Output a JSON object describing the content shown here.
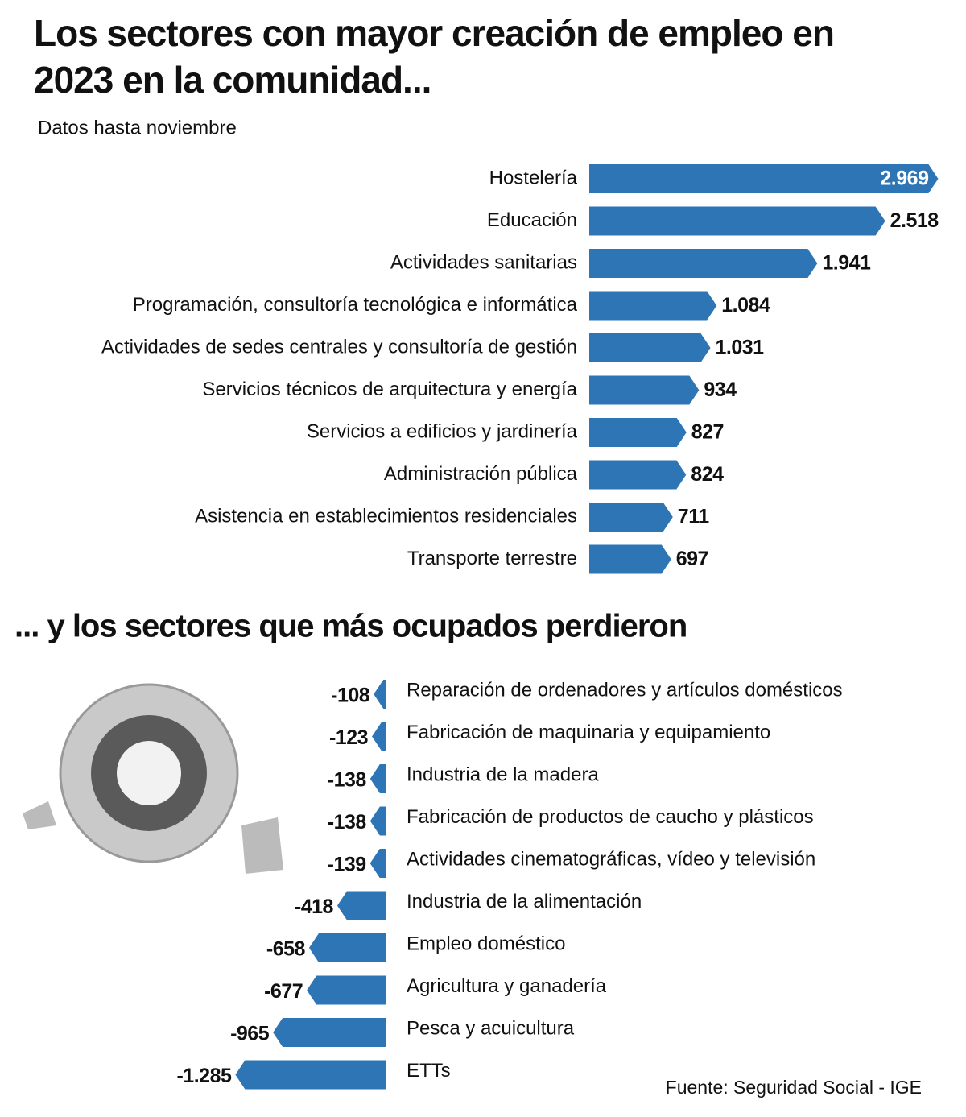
{
  "chart_data": [
    {
      "type": "bar",
      "orientation": "horizontal",
      "title": "Los sectores con mayor creación de empleo en 2023 en la comunidad...",
      "subtitle": "Datos hasta noviembre",
      "color": "#2e75b6",
      "categories": [
        "Hostelería",
        "Educación",
        "Actividades sanitarias",
        "Programación, consultoría tecnológica e informática",
        "Actividades de sedes centrales y consultoría de gestión",
        "Servicios técnicos de arquitectura y energía",
        "Servicios a edificios y jardinería",
        "Administración pública",
        "Asistencia en establecimientos residenciales",
        "Transporte terrestre"
      ],
      "values": [
        2969,
        2518,
        1941,
        1084,
        1031,
        934,
        827,
        824,
        711,
        697
      ],
      "value_labels": [
        "2.969",
        "2.518",
        "1.941",
        "1.084",
        "1.031",
        "934",
        "827",
        "824",
        "711",
        "697"
      ]
    },
    {
      "type": "bar",
      "orientation": "horizontal",
      "title": "... y los sectores que más ocupados perdieron",
      "source": "Fuente: Seguridad Social - IGE",
      "color": "#2e75b6",
      "categories": [
        "Reparación de ordenadores y artículos domésticos",
        "Fabricación de maquinaria y equipamiento",
        "Industria de la madera",
        "Fabricación de productos de caucho y plásticos",
        "Actividades cinematográficas, vídeo y televisión",
        "Industria de la alimentación",
        "Empleo doméstico",
        "Agricultura y ganadería",
        "Pesca y acuicultura",
        "ETTs"
      ],
      "values": [
        -108,
        -123,
        -138,
        -138,
        -139,
        -418,
        -658,
        -677,
        -965,
        -1285
      ],
      "value_labels": [
        "-108",
        "-123",
        "-138",
        "-138",
        "-139",
        "-418",
        "-658",
        "-677",
        "-965",
        "-1.285"
      ]
    }
  ]
}
